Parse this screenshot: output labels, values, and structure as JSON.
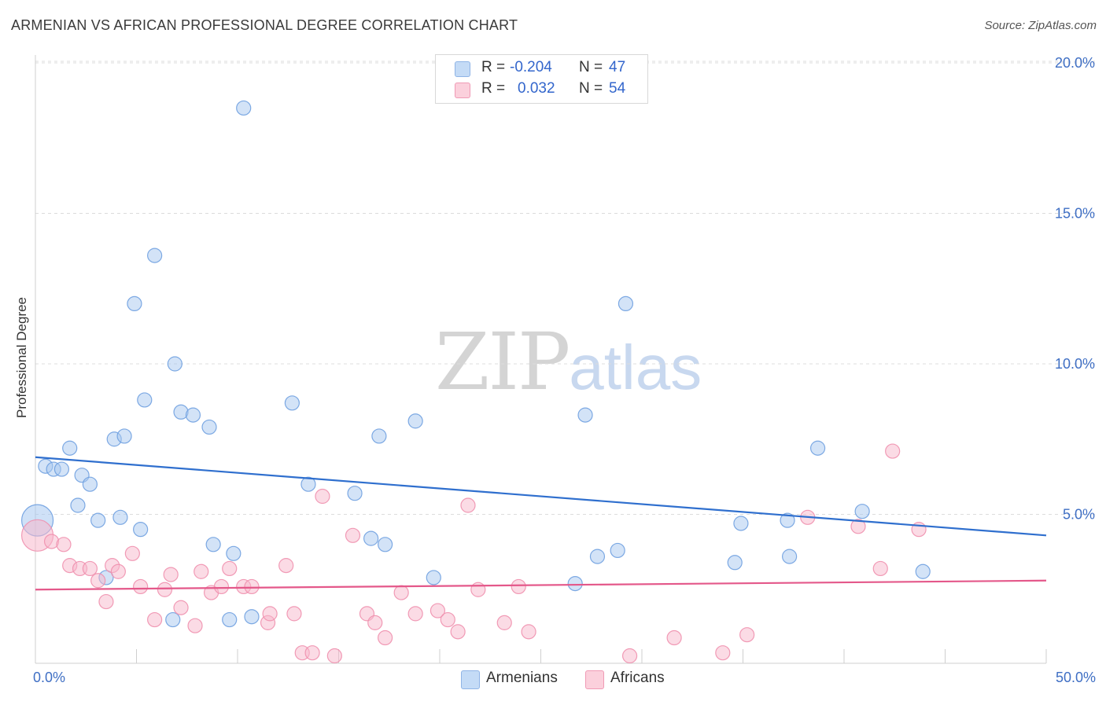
{
  "title": "ARMENIAN VS AFRICAN PROFESSIONAL DEGREE CORRELATION CHART",
  "source": "Source: ZipAtlas.com",
  "watermark": {
    "zip": "ZIP",
    "atlas": "atlas"
  },
  "legend": {
    "rows": [
      {
        "r_label": "R =",
        "r_value": "-0.204",
        "n_label": "N =",
        "n_value": "47",
        "color": "#a8c8f0"
      },
      {
        "r_label": "R =",
        "r_value": "0.032",
        "n_label": "N =",
        "n_value": "54",
        "color": "#f8b8cc"
      }
    ]
  },
  "bottom_legend": [
    {
      "label": "Armenians",
      "color": "#a8c8f0"
    },
    {
      "label": "Africans",
      "color": "#f8b8cc"
    }
  ],
  "chart_data": {
    "type": "scatter",
    "xlabel": "",
    "ylabel": "Professional Degree",
    "xlim": [
      0,
      50
    ],
    "ylim": [
      0,
      20.5
    ],
    "x_tick_labels": [
      "0.0%",
      "50.0%"
    ],
    "y_ticks": [
      5,
      10,
      15,
      20
    ],
    "y_tick_labels": [
      "5.0%",
      "10.0%",
      "15.0%",
      "20.0%"
    ],
    "grid": true,
    "legend_position": "top-center",
    "series": [
      {
        "name": "Armenians",
        "color": "#6fa0e0",
        "fill": "#a8c8f0",
        "trend": {
          "x": [
            0,
            50
          ],
          "y": [
            6.9,
            4.3
          ],
          "color": "#2f6fce"
        },
        "points": [
          [
            0.1,
            4.8
          ],
          [
            0.5,
            6.6
          ],
          [
            0.9,
            6.5
          ],
          [
            1.3,
            6.5
          ],
          [
            1.7,
            7.2
          ],
          [
            2.1,
            5.3
          ],
          [
            2.3,
            6.3
          ],
          [
            2.7,
            6.0
          ],
          [
            3.1,
            4.8
          ],
          [
            3.5,
            2.9
          ],
          [
            3.9,
            7.5
          ],
          [
            4.2,
            4.9
          ],
          [
            4.4,
            7.6
          ],
          [
            4.9,
            12.0
          ],
          [
            5.2,
            4.5
          ],
          [
            5.4,
            8.8
          ],
          [
            5.9,
            13.6
          ],
          [
            6.8,
            1.5
          ],
          [
            6.9,
            10.0
          ],
          [
            7.2,
            8.4
          ],
          [
            7.8,
            8.3
          ],
          [
            8.6,
            7.9
          ],
          [
            8.8,
            4.0
          ],
          [
            9.6,
            1.5
          ],
          [
            9.8,
            3.7
          ],
          [
            10.3,
            18.5
          ],
          [
            10.7,
            1.6
          ],
          [
            12.7,
            8.7
          ],
          [
            13.5,
            6.0
          ],
          [
            15.8,
            5.7
          ],
          [
            16.6,
            4.2
          ],
          [
            17.0,
            7.6
          ],
          [
            17.3,
            4.0
          ],
          [
            18.8,
            8.1
          ],
          [
            19.7,
            2.9
          ],
          [
            26.7,
            2.7
          ],
          [
            27.2,
            8.3
          ],
          [
            27.8,
            3.6
          ],
          [
            28.8,
            3.8
          ],
          [
            29.2,
            12.0
          ],
          [
            34.6,
            3.4
          ],
          [
            34.9,
            4.7
          ],
          [
            37.2,
            4.8
          ],
          [
            37.3,
            3.6
          ],
          [
            38.7,
            7.2
          ],
          [
            40.9,
            5.1
          ],
          [
            43.9,
            3.1
          ]
        ]
      },
      {
        "name": "Africans",
        "color": "#f090ae",
        "fill": "#f8b8cc",
        "trend": {
          "x": [
            0,
            50
          ],
          "y": [
            2.5,
            2.8
          ],
          "color": "#e4588a"
        },
        "points": [
          [
            0.1,
            4.3
          ],
          [
            0.8,
            4.1
          ],
          [
            1.4,
            4.0
          ],
          [
            1.7,
            3.3
          ],
          [
            2.2,
            3.2
          ],
          [
            2.7,
            3.2
          ],
          [
            3.1,
            2.8
          ],
          [
            3.5,
            2.1
          ],
          [
            3.8,
            3.3
          ],
          [
            4.1,
            3.1
          ],
          [
            4.8,
            3.7
          ],
          [
            5.2,
            2.6
          ],
          [
            5.9,
            1.5
          ],
          [
            6.4,
            2.5
          ],
          [
            6.7,
            3.0
          ],
          [
            7.2,
            1.9
          ],
          [
            7.9,
            1.3
          ],
          [
            8.2,
            3.1
          ],
          [
            8.7,
            2.4
          ],
          [
            9.2,
            2.6
          ],
          [
            9.6,
            3.2
          ],
          [
            10.3,
            2.6
          ],
          [
            10.7,
            2.6
          ],
          [
            11.5,
            1.4
          ],
          [
            11.6,
            1.7
          ],
          [
            12.4,
            3.3
          ],
          [
            12.8,
            1.7
          ],
          [
            13.2,
            0.4
          ],
          [
            13.7,
            0.4
          ],
          [
            14.2,
            5.6
          ],
          [
            14.8,
            0.3
          ],
          [
            15.7,
            4.3
          ],
          [
            16.4,
            1.7
          ],
          [
            16.8,
            1.4
          ],
          [
            17.3,
            0.9
          ],
          [
            18.1,
            2.4
          ],
          [
            18.8,
            1.7
          ],
          [
            19.9,
            1.8
          ],
          [
            20.4,
            1.5
          ],
          [
            20.9,
            1.1
          ],
          [
            21.4,
            5.3
          ],
          [
            21.9,
            2.5
          ],
          [
            23.2,
            1.4
          ],
          [
            23.9,
            2.6
          ],
          [
            24.4,
            1.1
          ],
          [
            29.4,
            0.3
          ],
          [
            31.6,
            0.9
          ],
          [
            34.0,
            0.4
          ],
          [
            35.2,
            1.0
          ],
          [
            38.2,
            4.9
          ],
          [
            40.7,
            4.6
          ],
          [
            41.8,
            3.2
          ],
          [
            42.4,
            7.1
          ],
          [
            43.7,
            4.5
          ]
        ]
      }
    ]
  }
}
